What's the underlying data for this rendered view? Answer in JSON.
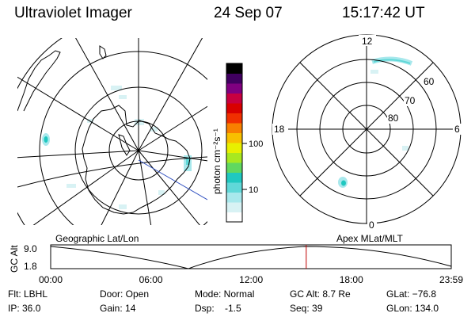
{
  "header": {
    "title": "Ultraviolet Imager",
    "date": "24 Sep 07",
    "time": "15:17:42 UT"
  },
  "colorbar": {
    "unit_label": "photon cm⁻²s⁻¹",
    "ticks": [
      {
        "label": "100",
        "value": 100
      },
      {
        "label": "10",
        "value": 10
      }
    ],
    "colors": [
      "#ffffff",
      "#d8f2f4",
      "#a8e8ec",
      "#60d8d8",
      "#20c8c0",
      "#60d860",
      "#a8e820",
      "#e8f000",
      "#f8c000",
      "#f88000",
      "#f03000",
      "#d80000",
      "#c80040",
      "#800080",
      "#400060",
      "#000000"
    ]
  },
  "polar_plot": {
    "mlt_labels": {
      "top": "12",
      "left": "18",
      "right": "6",
      "bottom": "0"
    },
    "lat_labels": [
      "60",
      "70",
      "80"
    ]
  },
  "timeline": {
    "ylabel": "GC Alt",
    "yticks": [
      "9.0",
      "1.8"
    ],
    "left_title": "Geographic Lat/Lon",
    "right_title": "Apex MLat/MLT",
    "xticks": [
      "00:00",
      "06:00",
      "12:00",
      "18:00",
      "23:59"
    ],
    "current_time_hours": 15.3,
    "marker_color": "#c00000"
  },
  "footer": {
    "flt": "Flt: LBHL",
    "ip": "IP: 36.0",
    "door": "Door: Open",
    "gain": "Gain: 14",
    "mode": "Mode: Normal",
    "dsp": "Dsp:    -1.5",
    "gc_alt": "GC Alt: 8.7 Re",
    "seq": "Seq: 39",
    "glat": "GLat: −76.8",
    "glon": "GLon: 134.0"
  }
}
